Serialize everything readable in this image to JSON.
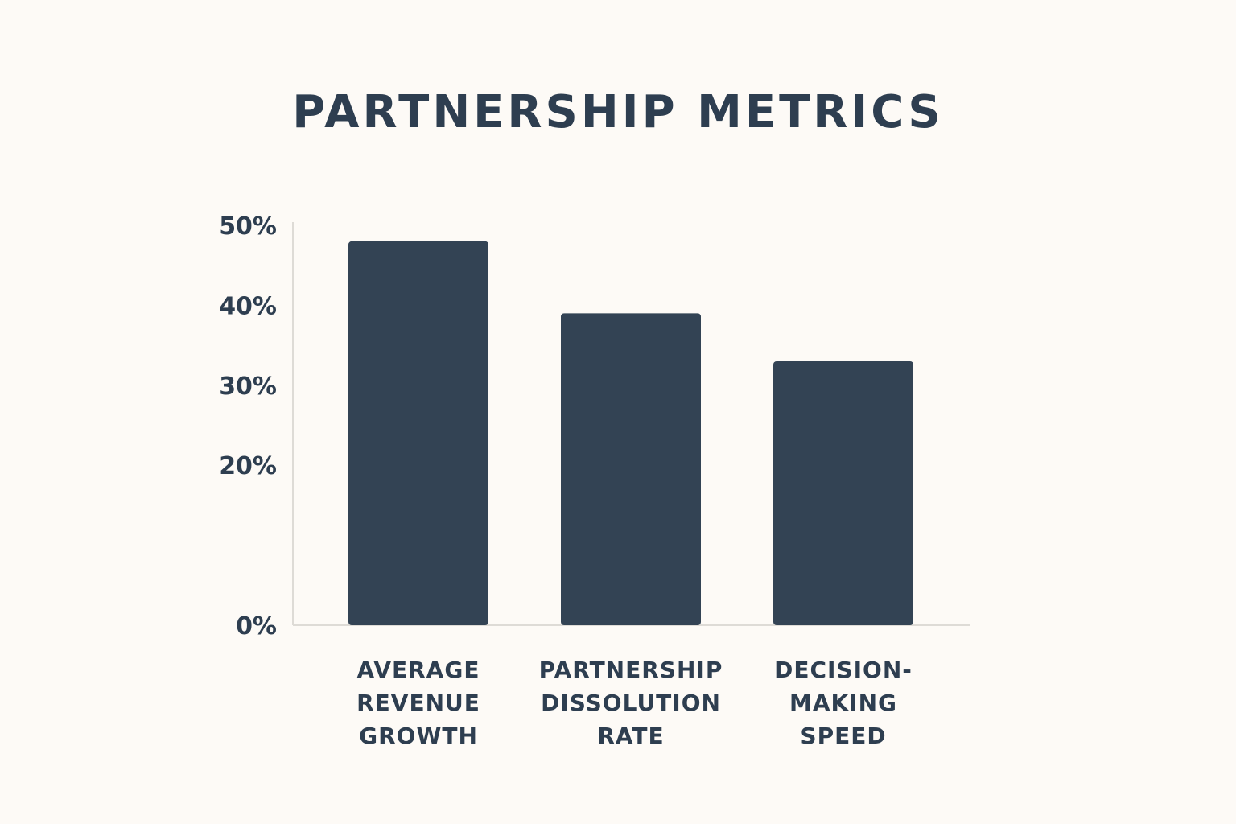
{
  "chart_data": {
    "type": "bar",
    "title": "PARTNERSHIP METRICS",
    "xlabel": "",
    "ylabel": "",
    "categories": [
      [
        "AVERAGE",
        "REVENUE",
        "GROWTH"
      ],
      [
        "PARTNERSHIP",
        "DISSOLUTION",
        "RATE"
      ],
      [
        "DECISION-",
        "MAKING",
        "SPEED"
      ]
    ],
    "values": [
      48,
      39,
      33
    ],
    "yticks": [
      {
        "value": 0,
        "label": "0%"
      },
      {
        "value": 20,
        "label": "20%"
      },
      {
        "value": 30,
        "label": "30%"
      },
      {
        "value": 40,
        "label": "40%"
      },
      {
        "value": 50,
        "label": "50%"
      }
    ],
    "ylim": [
      0,
      50
    ],
    "grid": false,
    "legend": "none",
    "colors": {
      "bar": "#334354",
      "axis": "#dedbd6",
      "text": "#2e3e50",
      "background": "#fdfaf6"
    }
  }
}
